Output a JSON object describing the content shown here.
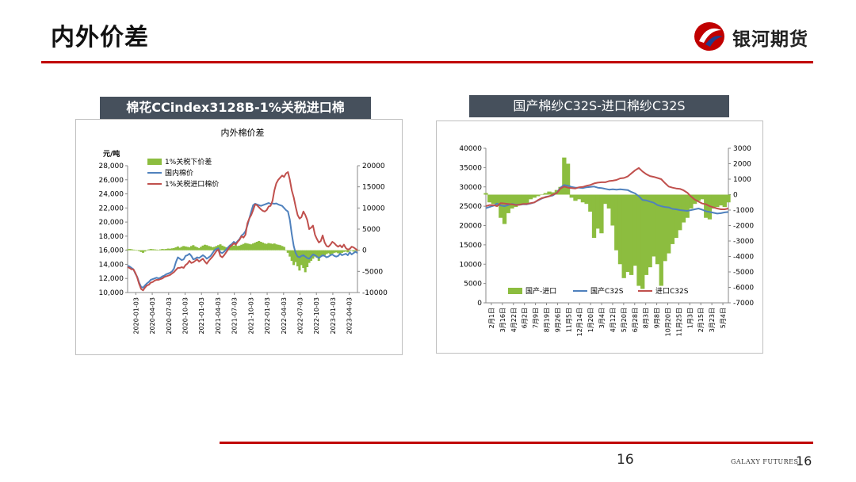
{
  "header": {
    "title": "内外价差",
    "brand_name": "银河期货"
  },
  "footer": {
    "page_center": "16",
    "brand_en": "GALAXY FUTURES",
    "page_right": "16"
  },
  "colors": {
    "accent_red": "#c00000",
    "banner_bg": "#46505c",
    "spread_green": "#8cbd3f",
    "domestic_blue": "#4f81bd",
    "import_red": "#c0504d"
  },
  "chart_data": [
    {
      "type": "line",
      "banner": "棉花CCindex3128B-1%关税进口棉",
      "title": "内外棉价差",
      "ylabel": "元/吨",
      "ylim": [
        10000,
        28000
      ],
      "y_ticks": [
        "28,000",
        "26,000",
        "24,000",
        "22,000",
        "20,000",
        "18,000",
        "16,000",
        "14,000",
        "12,000",
        "10,000"
      ],
      "y2lim": [
        -10000,
        20000
      ],
      "y2_ticks": [
        "20000",
        "15000",
        "10000",
        "5000",
        "0",
        "-5000",
        "-10000"
      ],
      "x_ticks": [
        "2020-01-03",
        "2020-04-03",
        "2020-07-03",
        "2020-10-03",
        "2021-01-03",
        "2021-04-03",
        "2021-07-03",
        "2021-10-03",
        "2022-01-03",
        "2022-04-03",
        "2022-07-03",
        "2022-10-03",
        "2023-01-03",
        "2023-04-03"
      ],
      "legend_position": "top-left",
      "series": [
        {
          "name": "1%关税下价差",
          "kind": "area",
          "axis": "right",
          "color": "#8cbd3f",
          "values": [
            200,
            300,
            250,
            150,
            100,
            0,
            -200,
            -400,
            -600,
            -300,
            0,
            200,
            300,
            250,
            200,
            150,
            100,
            200,
            300,
            250,
            300,
            400,
            350,
            450,
            500,
            700,
            900,
            600,
            800,
            1000,
            900,
            800,
            700,
            1000,
            1200,
            900,
            700,
            500,
            800,
            1100,
            1300,
            1200,
            1000,
            900,
            700,
            800,
            1000,
            1200,
            1400,
            1100,
            900,
            700,
            600,
            800,
            1000,
            1100,
            1200,
            1000,
            1100,
            1300,
            1500,
            1700,
            1600,
            1500,
            1400,
            1600,
            1800,
            2000,
            2200,
            2000,
            1800,
            1600,
            1500,
            1700,
            1600,
            1500,
            1600,
            1400,
            1300,
            1200,
            1000,
            800,
            -100,
            -600,
            -1500,
            -2500,
            -3500,
            -2800,
            -3800,
            -4800,
            -3500,
            -4200,
            -5200,
            -4000,
            -3000,
            -2500,
            -2000,
            -1500,
            -1800,
            -2500,
            -1500,
            -1000,
            -1200,
            -900,
            -700,
            -1000,
            -800,
            -600,
            -500,
            -700,
            -900,
            -600,
            -400,
            -300,
            -500,
            -200,
            -100,
            -300,
            -200,
            0
          ]
        },
        {
          "name": "国内棉价",
          "kind": "line",
          "axis": "left",
          "color": "#4f81bd",
          "values": [
            13800,
            13700,
            13500,
            13300,
            12700,
            12200,
            11400,
            10800,
            10700,
            11000,
            11300,
            11500,
            11800,
            11900,
            12000,
            12100,
            12000,
            12100,
            12300,
            12400,
            12600,
            12700,
            12800,
            13000,
            13400,
            14300,
            15000,
            14800,
            14600,
            14700,
            15200,
            15300,
            15500,
            15200,
            14700,
            14800,
            15000,
            14900,
            15100,
            15300,
            15100,
            14800,
            15000,
            15200,
            15600,
            16000,
            16200,
            16300,
            15700,
            15600,
            15800,
            16100,
            16400,
            16700,
            16900,
            17200,
            17000,
            17300,
            17600,
            18100,
            18300,
            18700,
            19500,
            20500,
            21500,
            22400,
            22600,
            22500,
            22400,
            22300,
            22400,
            22500,
            22600,
            22700,
            22600,
            22650,
            22600,
            22650,
            22500,
            22400,
            22300,
            22000,
            21700,
            21500,
            20300,
            18300,
            16600,
            15600,
            15100,
            15000,
            15200,
            15300,
            15100,
            14900,
            14800,
            15100,
            15400,
            15300,
            15100,
            14900,
            15100,
            15300,
            15200,
            15000,
            15100,
            15300,
            15400,
            15200,
            15100,
            15200,
            15500,
            15300,
            15400,
            15500,
            15300,
            15700,
            15400,
            15600,
            15800,
            15600
          ]
        },
        {
          "name": "1%关税进口棉价",
          "kind": "line",
          "axis": "left",
          "color": "#c0504d",
          "values": [
            13600,
            13500,
            13300,
            13300,
            12800,
            12100,
            11200,
            10500,
            10300,
            10700,
            11000,
            11100,
            11400,
            11500,
            11700,
            11800,
            11800,
            11900,
            12000,
            12200,
            12300,
            12400,
            12500,
            12700,
            12900,
            13200,
            13500,
            13500,
            13600,
            13500,
            13900,
            14100,
            14500,
            14200,
            14300,
            14500,
            14700,
            14400,
            14600,
            14800,
            14400,
            14100,
            14500,
            14800,
            15100,
            15500,
            15900,
            16100,
            15200,
            15000,
            15300,
            15700,
            16100,
            16500,
            16700,
            17000,
            16800,
            17200,
            17500,
            18000,
            17800,
            18200,
            19800,
            20500,
            21000,
            21700,
            22500,
            22400,
            22100,
            21800,
            21600,
            21500,
            21700,
            22200,
            22300,
            23000,
            24500,
            25500,
            26000,
            26300,
            26600,
            26400,
            26900,
            27100,
            26000,
            24500,
            23500,
            22200,
            21000,
            20500,
            20700,
            21500,
            21000,
            20300,
            19000,
            19200,
            19500,
            18200,
            17600,
            17100,
            17300,
            18100,
            17100,
            16600,
            16500,
            16800,
            17200,
            17000,
            16700,
            16500,
            16700,
            16400,
            16800,
            16300,
            16100,
            16200,
            16500,
            16400,
            16200,
            16000
          ]
        }
      ]
    },
    {
      "type": "line",
      "banner": "国产棉纱C32S-进口棉纱C32S",
      "ylim": [
        0,
        40000
      ],
      "y_ticks": [
        "40000",
        "35000",
        "30000",
        "25000",
        "20000",
        "15000",
        "10000",
        "5000",
        "0"
      ],
      "y2lim": [
        -7000,
        3000
      ],
      "y2_ticks": [
        "3000",
        "2000",
        "1000",
        "0",
        "-1000",
        "-2000",
        "-3000",
        "-4000",
        "-5000",
        "-6000",
        "-7000"
      ],
      "x_ticks": [
        "2月1日",
        "3月16日",
        "4月22日",
        "6月2日",
        "7月9日",
        "8月19日",
        "9月26日",
        "11月5日",
        "12月14日",
        "1月20日",
        "3月4日",
        "4月12日",
        "5月20日",
        "6月28日",
        "8月3日",
        "9月8日",
        "10月20日",
        "11月25日",
        "1月3日",
        "2月15日",
        "3月23日",
        "5月4日"
      ],
      "legend_position": "bottom",
      "series": [
        {
          "name": "国产-进口",
          "kind": "area",
          "axis": "right",
          "color": "#8cbd3f",
          "values": [
            100,
            -500,
            -600,
            -700,
            -1500,
            -1900,
            -1200,
            -900,
            -800,
            -700,
            -650,
            -600,
            -300,
            -200,
            -100,
            0,
            100,
            200,
            150,
            300,
            500,
            2400,
            2000,
            -200,
            -400,
            -300,
            -500,
            -600,
            -1100,
            -2800,
            -2200,
            -2500,
            -600,
            -900,
            -2000,
            -3600,
            -4500,
            -5400,
            -5000,
            -5200,
            -4600,
            -5900,
            -6100,
            -5200,
            -4700,
            -4000,
            -4500,
            -5900,
            -4300,
            -3800,
            -3200,
            -2800,
            -2300,
            -1800,
            -1500,
            -900,
            -600,
            -400,
            -300,
            -1500,
            -1600,
            -900,
            -800,
            -700,
            -800,
            -500
          ]
        },
        {
          "name": "国产C32S",
          "kind": "line",
          "axis": "left",
          "color": "#4f81bd",
          "values": [
            24500,
            24800,
            25100,
            25700,
            25200,
            25000,
            25300,
            25600,
            25400,
            25400,
            25500,
            25500,
            25700,
            26000,
            26500,
            27000,
            27400,
            27600,
            27800,
            28500,
            29800,
            30500,
            30300,
            30000,
            29800,
            29800,
            29700,
            29900,
            30000,
            30100,
            29800,
            29700,
            29500,
            29300,
            29400,
            29300,
            29400,
            29300,
            29200,
            28700,
            28300,
            27600,
            26600,
            26500,
            26200,
            25900,
            25300,
            25000,
            24800,
            24700,
            24300,
            24200,
            24000,
            23900,
            23800,
            24000,
            24200,
            24400,
            24100,
            23700,
            23500,
            23300,
            23100,
            23200,
            23400,
            23500
          ]
        },
        {
          "name": "进口C32S",
          "kind": "line",
          "axis": "left",
          "color": "#c0504d",
          "values": [
            25000,
            25300,
            25300,
            25000,
            25800,
            25700,
            25600,
            25500,
            25300,
            25400,
            25600,
            25600,
            25800,
            26000,
            26600,
            27100,
            27300,
            27600,
            28000,
            28400,
            29600,
            30100,
            29800,
            29700,
            29600,
            29900,
            30000,
            30300,
            30500,
            30900,
            31100,
            31200,
            31200,
            31500,
            31600,
            31800,
            32200,
            32300,
            32700,
            33500,
            34300,
            34900,
            34000,
            33300,
            32800,
            32600,
            32300,
            32000,
            31000,
            30100,
            29800,
            29600,
            29500,
            29100,
            28500,
            27500,
            26700,
            26200,
            25700,
            25500,
            25000,
            24700,
            24400,
            24200,
            24200,
            24400
          ]
        }
      ]
    }
  ]
}
